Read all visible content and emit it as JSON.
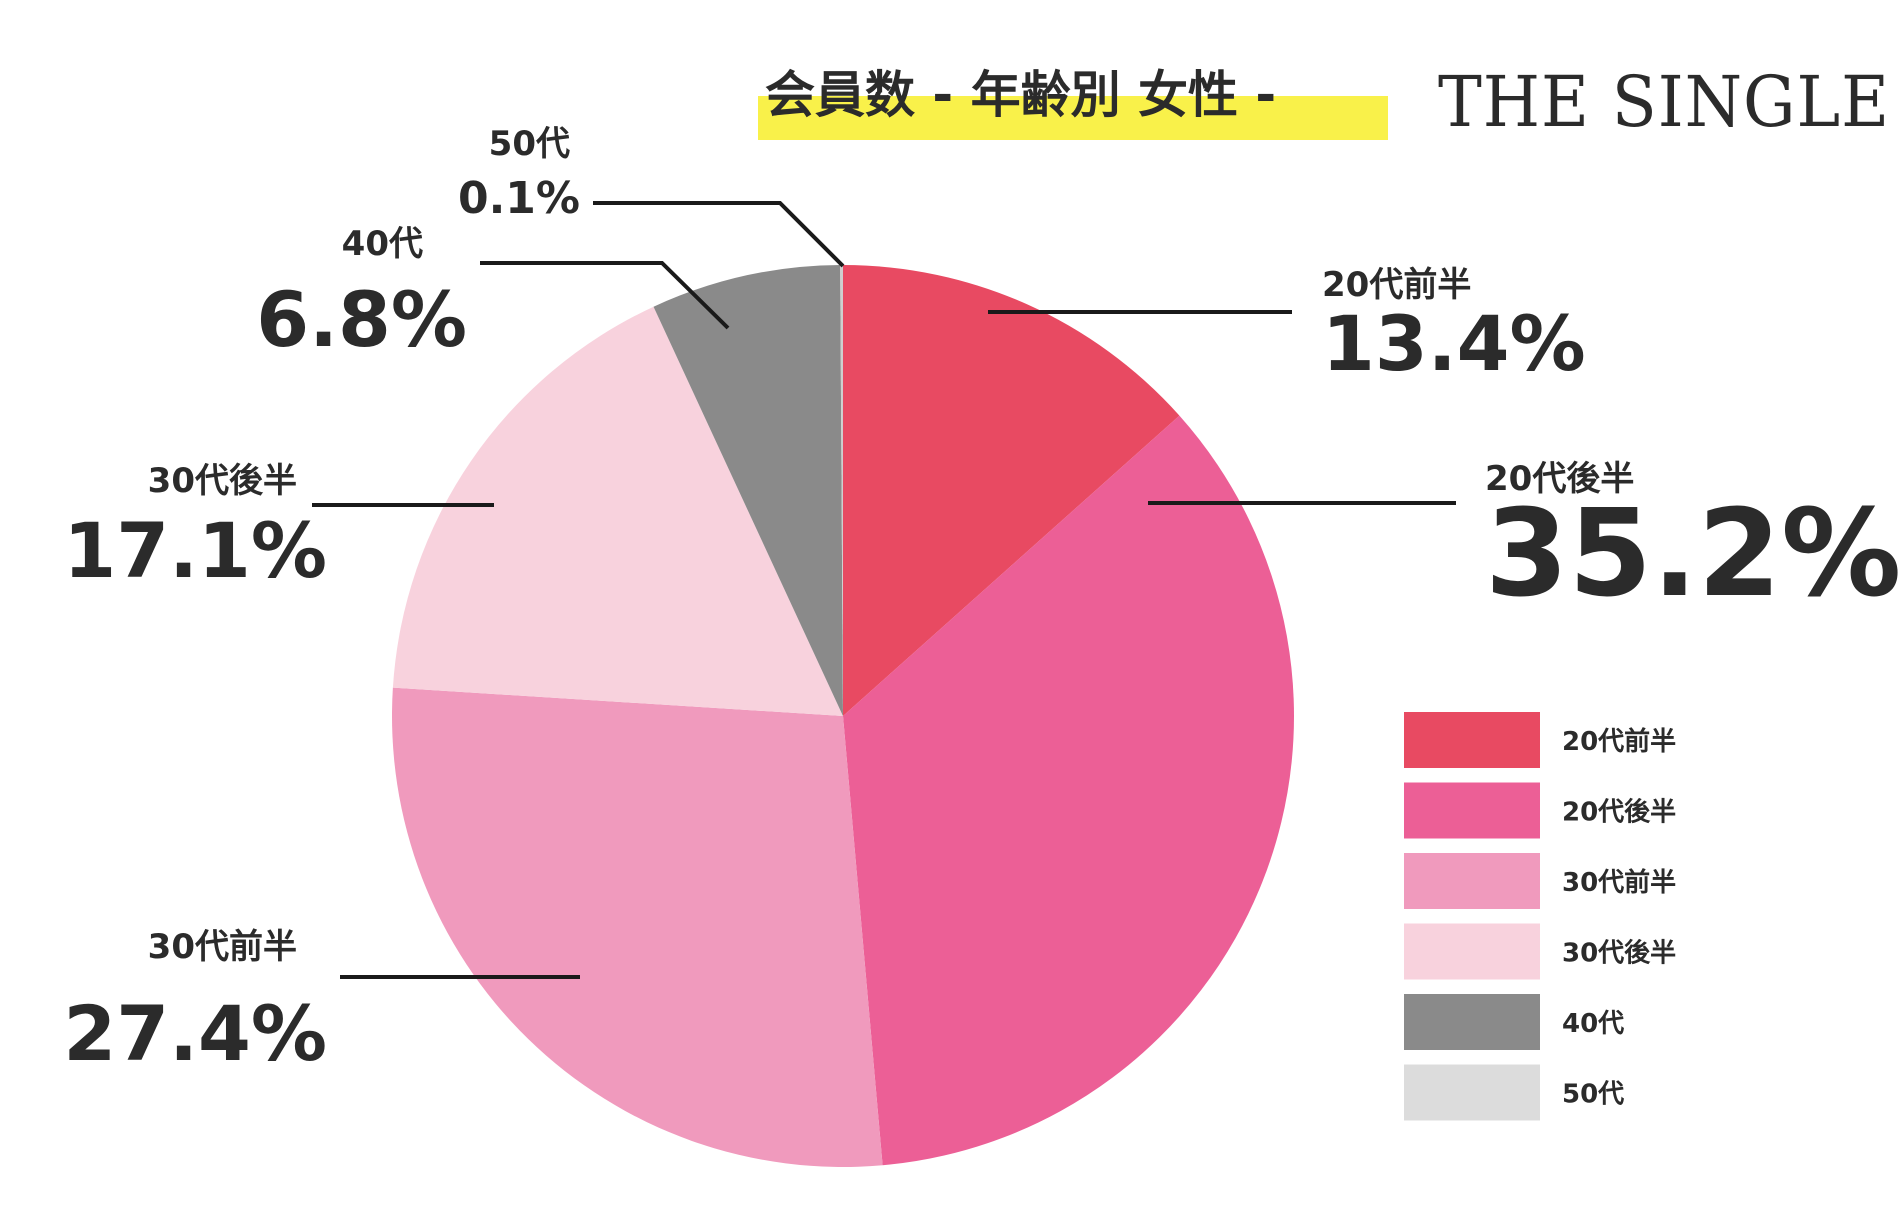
{
  "title": "会員数 - 年齢別 女性 -",
  "brand": "THE SINGLE",
  "colors": {
    "title_highlight": "#f9f14a",
    "text": "#2b2b2b"
  },
  "chart_data": {
    "type": "pie",
    "title": "会員数 - 年齢別 女性 -",
    "legend_position": "right",
    "slices": [
      {
        "label": "20代前半",
        "value": 13.4,
        "display": "13.4%",
        "color": "#e84a62"
      },
      {
        "label": "20代後半",
        "value": 35.2,
        "display": "35.2%",
        "color": "#ec5f96"
      },
      {
        "label": "30代前半",
        "value": 27.4,
        "display": "27.4%",
        "color": "#f09abd"
      },
      {
        "label": "30代後半",
        "value": 17.1,
        "display": "17.1%",
        "color": "#f8d2dd"
      },
      {
        "label": "40代",
        "value": 6.8,
        "display": "6.8%",
        "color": "#8a8a8a"
      },
      {
        "label": "50代",
        "value": 0.1,
        "display": "0.1%",
        "color": "#cfcfcf"
      }
    ],
    "legend": [
      {
        "label": "20代前半",
        "color": "#e84a62"
      },
      {
        "label": "20代後半",
        "color": "#ec5f96"
      },
      {
        "label": "30代前半",
        "color": "#f09abd"
      },
      {
        "label": "30代後半",
        "color": "#f8d2dd"
      },
      {
        "label": "40代",
        "color": "#8a8a8a"
      },
      {
        "label": "50代",
        "color": "#dcdcdc"
      }
    ]
  }
}
